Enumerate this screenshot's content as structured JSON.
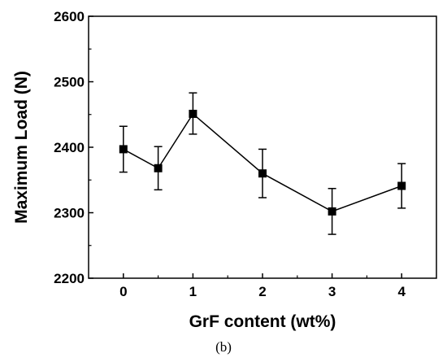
{
  "chart_data": {
    "type": "line",
    "xlabel": "GrF content (wt%)",
    "ylabel": "Maximum Load (N)",
    "caption": "(b)",
    "xlim": [
      -0.5,
      4.5
    ],
    "ylim": [
      2200,
      2600
    ],
    "x_ticks": [
      0,
      1,
      2,
      3,
      4
    ],
    "y_ticks": [
      2200,
      2300,
      2400,
      2500,
      2600
    ],
    "series": [
      {
        "points": [
          {
            "x": 0,
            "y": 2397,
            "err_low": 2362,
            "err_high": 2432
          },
          {
            "x": 0.5,
            "y": 2368,
            "err_low": 2335,
            "err_high": 2401
          },
          {
            "x": 1,
            "y": 2451,
            "err_low": 2420,
            "err_high": 2483
          },
          {
            "x": 2,
            "y": 2360,
            "err_low": 2323,
            "err_high": 2397
          },
          {
            "x": 3,
            "y": 2302,
            "err_low": 2267,
            "err_high": 2337
          },
          {
            "x": 4,
            "y": 2341,
            "err_low": 2307,
            "err_high": 2375
          }
        ],
        "color": "#000000",
        "marker": "square"
      }
    ],
    "grid": false,
    "legend": "none"
  }
}
